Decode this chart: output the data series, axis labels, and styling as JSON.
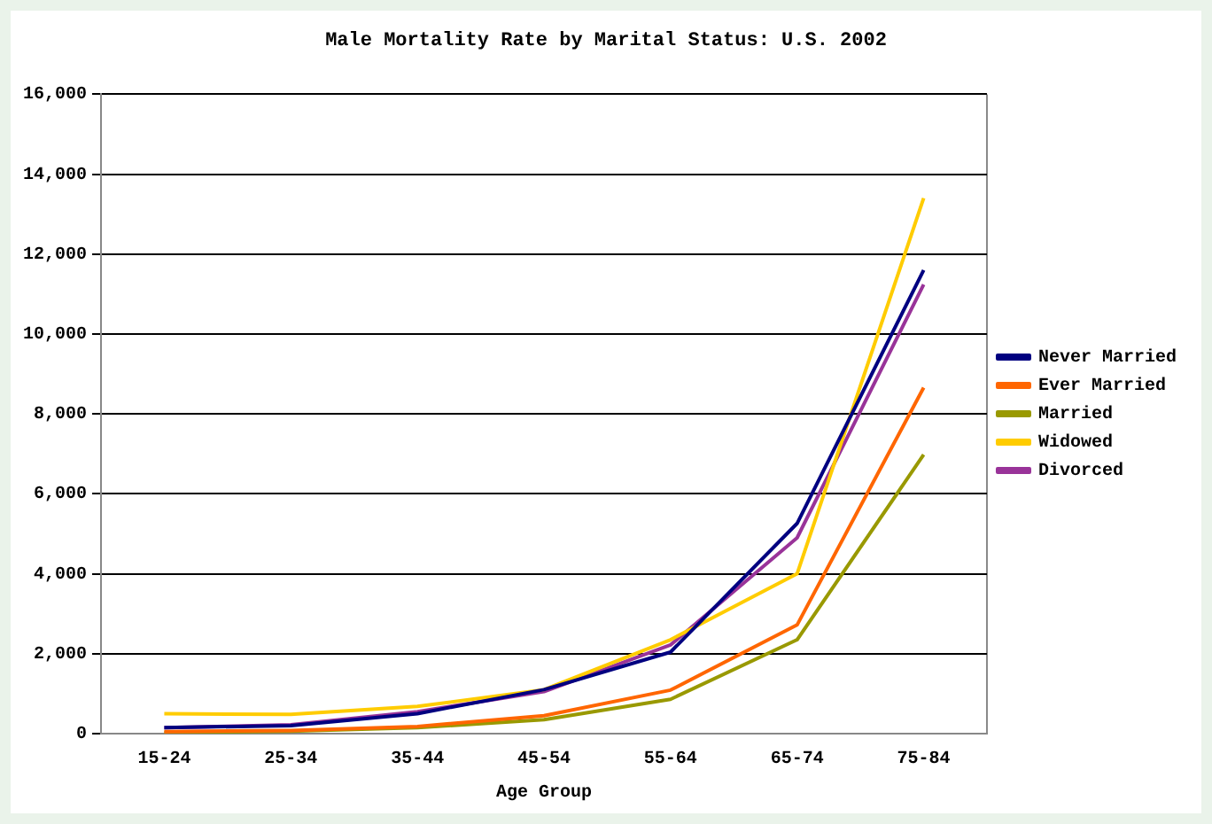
{
  "chart_data": {
    "type": "line",
    "title": "Male Mortality Rate by Marital Status: U.S. 2002",
    "xlabel": "Age Group",
    "categories": [
      "15-24",
      "25-34",
      "35-44",
      "45-54",
      "55-64",
      "65-74",
      "75-84"
    ],
    "series": [
      {
        "name": "Never Married",
        "color": "#000080",
        "values": [
          150,
          200,
          500,
          1100,
          2040,
          5260,
          11600
        ]
      },
      {
        "name": "Ever Married",
        "color": "#ff6600",
        "values": [
          50,
          80,
          180,
          450,
          1090,
          2720,
          8660
        ]
      },
      {
        "name": "Married",
        "color": "#999900",
        "values": [
          30,
          60,
          150,
          350,
          860,
          2350,
          6980
        ]
      },
      {
        "name": "Widowed",
        "color": "#ffcc00",
        "values": [
          500,
          480,
          680,
          1100,
          2350,
          4000,
          13400
        ]
      },
      {
        "name": "Divorced",
        "color": "#993399",
        "values": [
          150,
          220,
          550,
          1050,
          2220,
          4900,
          11240
        ]
      }
    ],
    "ylim": [
      0,
      16000
    ],
    "yticks": [
      0,
      {
        "value": 2000,
        "label": "2,000"
      },
      {
        "value": 4000,
        "label": "4,000"
      },
      {
        "value": 6000,
        "label": "6,000"
      },
      {
        "value": 8000,
        "label": "8,000"
      },
      {
        "value": 10000,
        "label": "10,000"
      },
      {
        "value": 12000,
        "label": "12,000"
      },
      {
        "value": 14000,
        "label": "14,000"
      },
      {
        "value": 16000,
        "label": "16,000"
      }
    ],
    "grid": "y",
    "legend": "right",
    "marker": "none",
    "line_style": "solid"
  }
}
